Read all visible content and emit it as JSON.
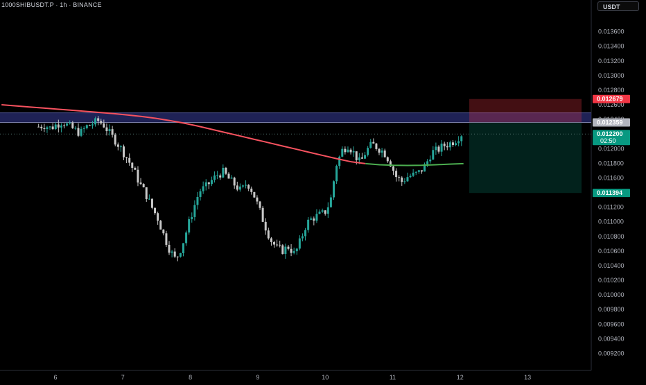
{
  "header": {
    "symbol_line": "1000SHIBUSDT.P · 1h · BINANCE",
    "currency_button": "USDT"
  },
  "chart_data": {
    "type": "candlestick",
    "ylim": [
      0.0091,
      0.0139
    ],
    "y_ticks": [
      "0.013600",
      "0.013400",
      "0.013200",
      "0.013000",
      "0.012800",
      "0.012600",
      "0.012400",
      "0.012200",
      "0.012000",
      "0.011800",
      "0.011600",
      "0.011400",
      "0.011200",
      "0.011000",
      "0.010800",
      "0.010600",
      "0.010400",
      "0.010200",
      "0.010000",
      "0.009800",
      "0.009600",
      "0.009400",
      "0.009200"
    ],
    "x_ticks": [
      "6",
      "7",
      "8",
      "9",
      "10",
      "11",
      "12",
      "13"
    ],
    "price_labels": {
      "stop": {
        "text": "0.012679",
        "value": 0.012679,
        "color": "#f23645"
      },
      "entry": {
        "text": "0.012359",
        "value": 0.012359,
        "color": "#b2b5be"
      },
      "current": {
        "text": "0.012200",
        "value": 0.0122,
        "color": "#089981"
      },
      "countdown": "02:50",
      "target": {
        "text": "0.011394",
        "value": 0.011394,
        "color": "#089981"
      }
    },
    "zone": {
      "low": 0.012359,
      "high": 0.01249,
      "color": "#2a2e73"
    },
    "position": {
      "entry": 0.012359,
      "stop": 0.012679,
      "target": 0.011394
    },
    "moving_average": {
      "colors": {
        "above": "#f7525f",
        "below": "#4caf50"
      },
      "values": [
        0.0126,
        0.012585,
        0.01257,
        0.012555,
        0.01254,
        0.012525,
        0.01251,
        0.012495,
        0.01248,
        0.01246,
        0.01244,
        0.012415,
        0.012385,
        0.01235,
        0.01231,
        0.012265,
        0.01222,
        0.012175,
        0.01213,
        0.012085,
        0.01204,
        0.011995,
        0.01195,
        0.011905,
        0.01186,
        0.01182,
        0.011795,
        0.01178,
        0.011772,
        0.01177,
        0.011772,
        0.01178,
        0.011788,
        0.011795
      ]
    },
    "series": [
      {
        "name": "1000SHIBUSDT.P",
        "colors": {
          "up": "#26a69a",
          "down": "#c8c8c8"
        },
        "close_path": [
          0.0123,
          0.01232,
          0.01228,
          0.01233,
          0.01237,
          0.01231,
          0.01226,
          0.01221,
          0.0123,
          0.01234,
          0.01238,
          0.01232,
          0.0122,
          0.0121,
          0.01198,
          0.01185,
          0.0117,
          0.01152,
          0.01138,
          0.0112,
          0.01105,
          0.01082,
          0.01062,
          0.01048,
          0.01065,
          0.01092,
          0.01118,
          0.01142,
          0.01147,
          0.01156,
          0.01164,
          0.01168,
          0.01158,
          0.0115,
          0.01142,
          0.01154,
          0.0114,
          0.01118,
          0.01095,
          0.01075,
          0.01064,
          0.01061,
          0.01066,
          0.01055,
          0.01075,
          0.01098,
          0.01105,
          0.01109,
          0.01112,
          0.01128,
          0.01178,
          0.01198,
          0.01205,
          0.01193,
          0.0118,
          0.01197,
          0.01206,
          0.01201,
          0.01195,
          0.01182,
          0.01162,
          0.01155,
          0.01162,
          0.01164,
          0.01168,
          0.01178,
          0.01195,
          0.01198,
          0.01204,
          0.01207,
          0.01212,
          0.0122
        ],
        "x_start_day": 5.75,
        "x_end_day": 12.02
      }
    ]
  }
}
